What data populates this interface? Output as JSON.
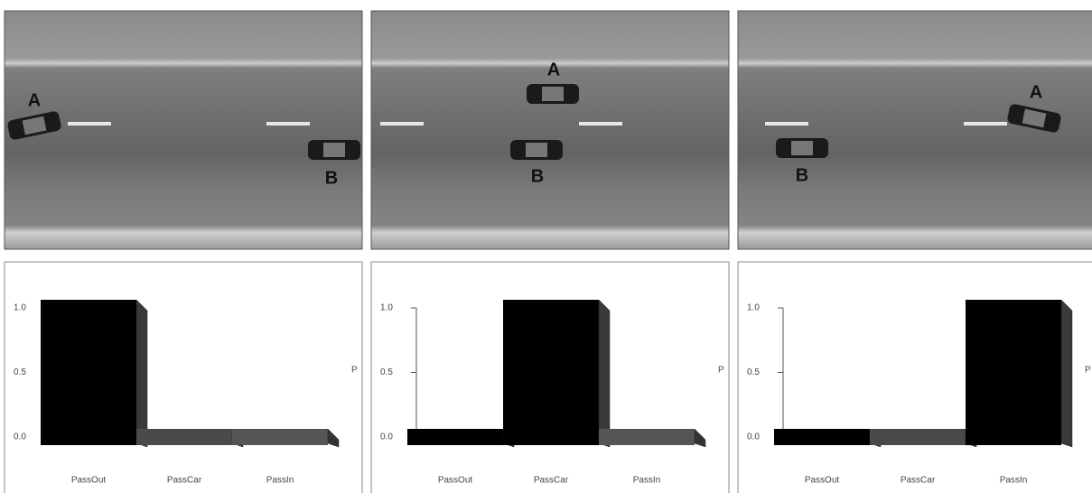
{
  "scenes": [
    {
      "car_a": "A",
      "car_b": "B"
    },
    {
      "car_a": "A",
      "car_b": "B"
    },
    {
      "car_a": "A",
      "car_b": "B"
    }
  ],
  "chart_data": [
    {
      "type": "bar",
      "categories": [
        "PassOut",
        "PassCar",
        "PassIn"
      ],
      "values": [
        1,
        0,
        0
      ],
      "colors": [
        "#000000",
        "#4a4a4a",
        "#555555"
      ],
      "ylim": [
        0,
        1
      ],
      "yticks": [
        {
          "value": 0,
          "label": "0.0"
        },
        {
          "value": 0.5,
          "label": "0.5"
        },
        {
          "value": 1,
          "label": "1.0"
        }
      ],
      "y_label": "P"
    },
    {
      "type": "bar",
      "categories": [
        "PassOut",
        "PassCar",
        "PassIn"
      ],
      "values": [
        0,
        1,
        0
      ],
      "colors": [
        "#000000",
        "#000000",
        "#555555"
      ],
      "ylim": [
        0,
        1
      ],
      "yticks": [
        {
          "value": 0,
          "label": "0.0"
        },
        {
          "value": 0.5,
          "label": "0.5"
        },
        {
          "value": 1,
          "label": "1.0"
        }
      ],
      "y_label": "P"
    },
    {
      "type": "bar",
      "categories": [
        "PassOut",
        "PassCar",
        "PassIn"
      ],
      "values": [
        0,
        0,
        1
      ],
      "colors": [
        "#000000",
        "#4a4a4a",
        "#000000"
      ],
      "ylim": [
        0,
        1
      ],
      "yticks": [
        {
          "value": 0,
          "label": "0.0"
        },
        {
          "value": 0.5,
          "label": "0.5"
        },
        {
          "value": 1,
          "label": "1.0"
        }
      ],
      "y_label": "P"
    }
  ]
}
